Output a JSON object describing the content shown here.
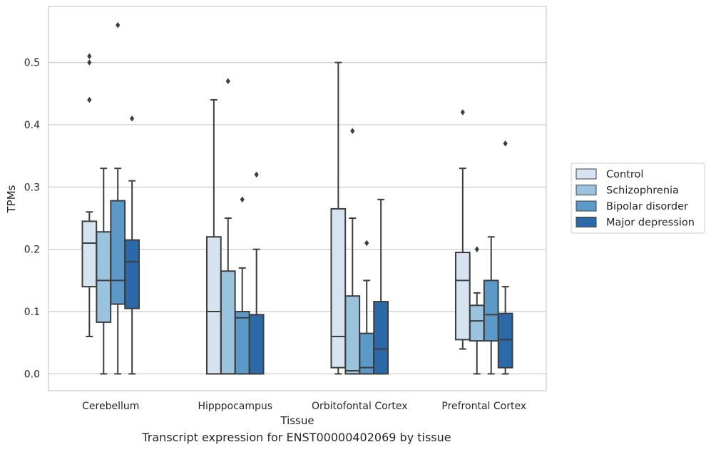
{
  "caption": "Transcript expression for ENST00000402069 by tissue",
  "chart_data": {
    "type": "boxplot",
    "title": "",
    "xlabel": "Tissue",
    "ylabel": "TPMs",
    "ylim": [
      -0.027,
      0.59
    ],
    "yticks": [
      0.0,
      0.1,
      0.2,
      0.3,
      0.4,
      0.5
    ],
    "ytick_labels": [
      "0.0",
      "0.1",
      "0.2",
      "0.3",
      "0.4",
      "0.5"
    ],
    "grid": "horizontal",
    "legend_position": "right",
    "categories": [
      "Cerebellum",
      "Hipppocampus",
      "Orbitofontal Cortex",
      "Prefrontal Cortex"
    ],
    "series": [
      {
        "name": "Control",
        "color": "#d6e4f2",
        "boxes": [
          {
            "whislo": 0.06,
            "q1": 0.14,
            "med": 0.21,
            "q3": 0.245,
            "whishi": 0.26,
            "fliers": [
              0.44,
              0.5,
              0.51
            ]
          },
          {
            "whislo": 0.0,
            "q1": 0.0,
            "med": 0.1,
            "q3": 0.22,
            "whishi": 0.44,
            "fliers": []
          },
          {
            "whislo": 0.0,
            "q1": 0.01,
            "med": 0.06,
            "q3": 0.265,
            "whishi": 0.5,
            "fliers": []
          },
          {
            "whislo": 0.04,
            "q1": 0.055,
            "med": 0.15,
            "q3": 0.195,
            "whishi": 0.33,
            "fliers": [
              0.42
            ]
          }
        ]
      },
      {
        "name": "Schizophrenia",
        "color": "#9ac3dd",
        "boxes": [
          {
            "whislo": 0.0,
            "q1": 0.083,
            "med": 0.15,
            "q3": 0.228,
            "whishi": 0.33,
            "fliers": []
          },
          {
            "whislo": 0.0,
            "q1": 0.0,
            "med": 0.0,
            "q3": 0.165,
            "whishi": 0.25,
            "fliers": [
              0.47
            ]
          },
          {
            "whislo": 0.0,
            "q1": 0.0,
            "med": 0.005,
            "q3": 0.125,
            "whishi": 0.25,
            "fliers": [
              0.39
            ]
          },
          {
            "whislo": 0.0,
            "q1": 0.053,
            "med": 0.085,
            "q3": 0.11,
            "whishi": 0.13,
            "fliers": [
              0.2
            ]
          }
        ]
      },
      {
        "name": "Bipolar disorder",
        "color": "#5b9ac8",
        "boxes": [
          {
            "whislo": 0.0,
            "q1": 0.112,
            "med": 0.15,
            "q3": 0.278,
            "whishi": 0.33,
            "fliers": [
              0.56
            ]
          },
          {
            "whislo": 0.0,
            "q1": 0.0,
            "med": 0.09,
            "q3": 0.1,
            "whishi": 0.17,
            "fliers": [
              0.28
            ]
          },
          {
            "whislo": 0.0,
            "q1": 0.0,
            "med": 0.01,
            "q3": 0.065,
            "whishi": 0.15,
            "fliers": [
              0.21
            ]
          },
          {
            "whislo": 0.0,
            "q1": 0.053,
            "med": 0.095,
            "q3": 0.15,
            "whishi": 0.22,
            "fliers": []
          }
        ]
      },
      {
        "name": "Major depression",
        "color": "#2b69a8",
        "boxes": [
          {
            "whislo": 0.0,
            "q1": 0.105,
            "med": 0.18,
            "q3": 0.215,
            "whishi": 0.31,
            "fliers": [
              0.41
            ]
          },
          {
            "whislo": 0.0,
            "q1": 0.0,
            "med": 0.0,
            "q3": 0.095,
            "whishi": 0.2,
            "fliers": [
              0.32
            ]
          },
          {
            "whislo": 0.0,
            "q1": 0.0,
            "med": 0.04,
            "q3": 0.116,
            "whishi": 0.28,
            "fliers": []
          },
          {
            "whislo": 0.0,
            "q1": 0.01,
            "med": 0.055,
            "q3": 0.097,
            "whishi": 0.14,
            "fliers": [
              0.37
            ]
          }
        ]
      }
    ]
  }
}
